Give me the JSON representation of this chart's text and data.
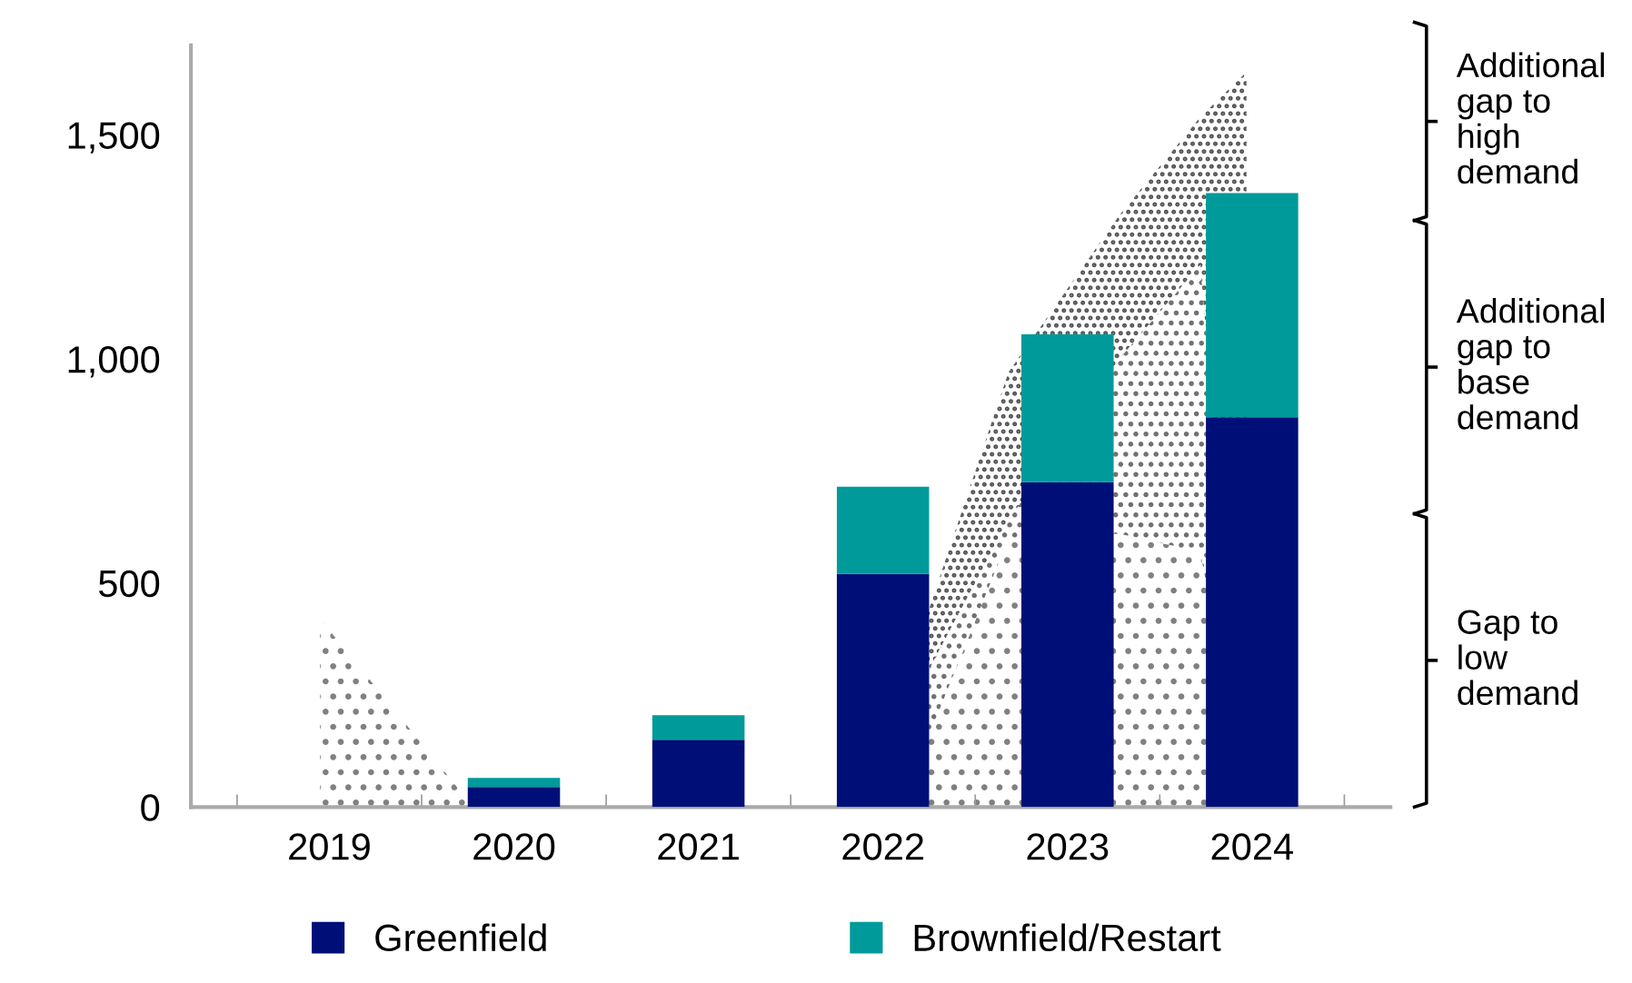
{
  "chart_data": {
    "type": "bar",
    "stacked": true,
    "x": [
      2019,
      2020,
      2021,
      2022,
      2023,
      2024
    ],
    "series": [
      {
        "name": "Greenfield",
        "color": "#000f78",
        "values": [
          0,
          45,
          150,
          520,
          725,
          870
        ]
      },
      {
        "name": "Brownfield/Restart",
        "color": "#009a9a",
        "values": [
          0,
          20,
          55,
          195,
          330,
          500
        ]
      },
      {
        "type": "area",
        "color": "#808080",
        "x": [
          2023.97,
          2023.72,
          2023.28,
          2022.68,
          2022.24,
          2022.2,
          2019.78,
          2018.95
        ],
        "values": [
          0,
          570,
          610,
          600,
          150,
          0,
          0,
          420
        ]
      },
      {
        "type": "area",
        "color": "#707070",
        "x": [
          2023.97,
          2023.72,
          2023.28,
          2022.68,
          2022.24,
          2022.2,
          2019.78,
          2018.95
        ],
        "values": [
          0,
          640,
          390,
          40,
          150,
          0,
          0,
          0
        ]
      },
      {
        "type": "area",
        "color": "#505050",
        "x": [
          2023.97,
          2023.72,
          2023.28,
          2022.68,
          2022.24,
          2022.2,
          2019.78,
          2018.95
        ],
        "values": [
          1640,
          330,
          320,
          330,
          130,
          0,
          0,
          0
        ]
      }
    ],
    "xlim": [
      2018.25,
      2024.75
    ],
    "xticks": [
      {
        "value": 2018.5,
        "label": null
      },
      2019,
      {
        "value": 2019.5,
        "label": null
      },
      2020,
      {
        "value": 2020.5,
        "label": null
      },
      2021,
      {
        "value": 2021.5,
        "label": null
      },
      2022,
      {
        "value": 2022.5,
        "label": null
      },
      2023,
      {
        "value": 2023.5,
        "label": null
      },
      2024,
      {
        "value": 2024.5,
        "label": null
      }
    ],
    "ylim": [
      0,
      1700
    ],
    "yticks": [
      {
        "value": 0,
        "label": "0"
      },
      {
        "value": 500,
        "label": "500"
      },
      {
        "value": 1000,
        "label": "1,000"
      },
      {
        "value": 1500,
        "label": "1,500"
      }
    ],
    "annotations": [
      "Gap to\nlow\ndemand",
      "Additional\ngap to\nbase\ndemand",
      "Additional\ngap to\nhigh\ndemand"
    ],
    "grid": false,
    "legend": "bottom"
  }
}
